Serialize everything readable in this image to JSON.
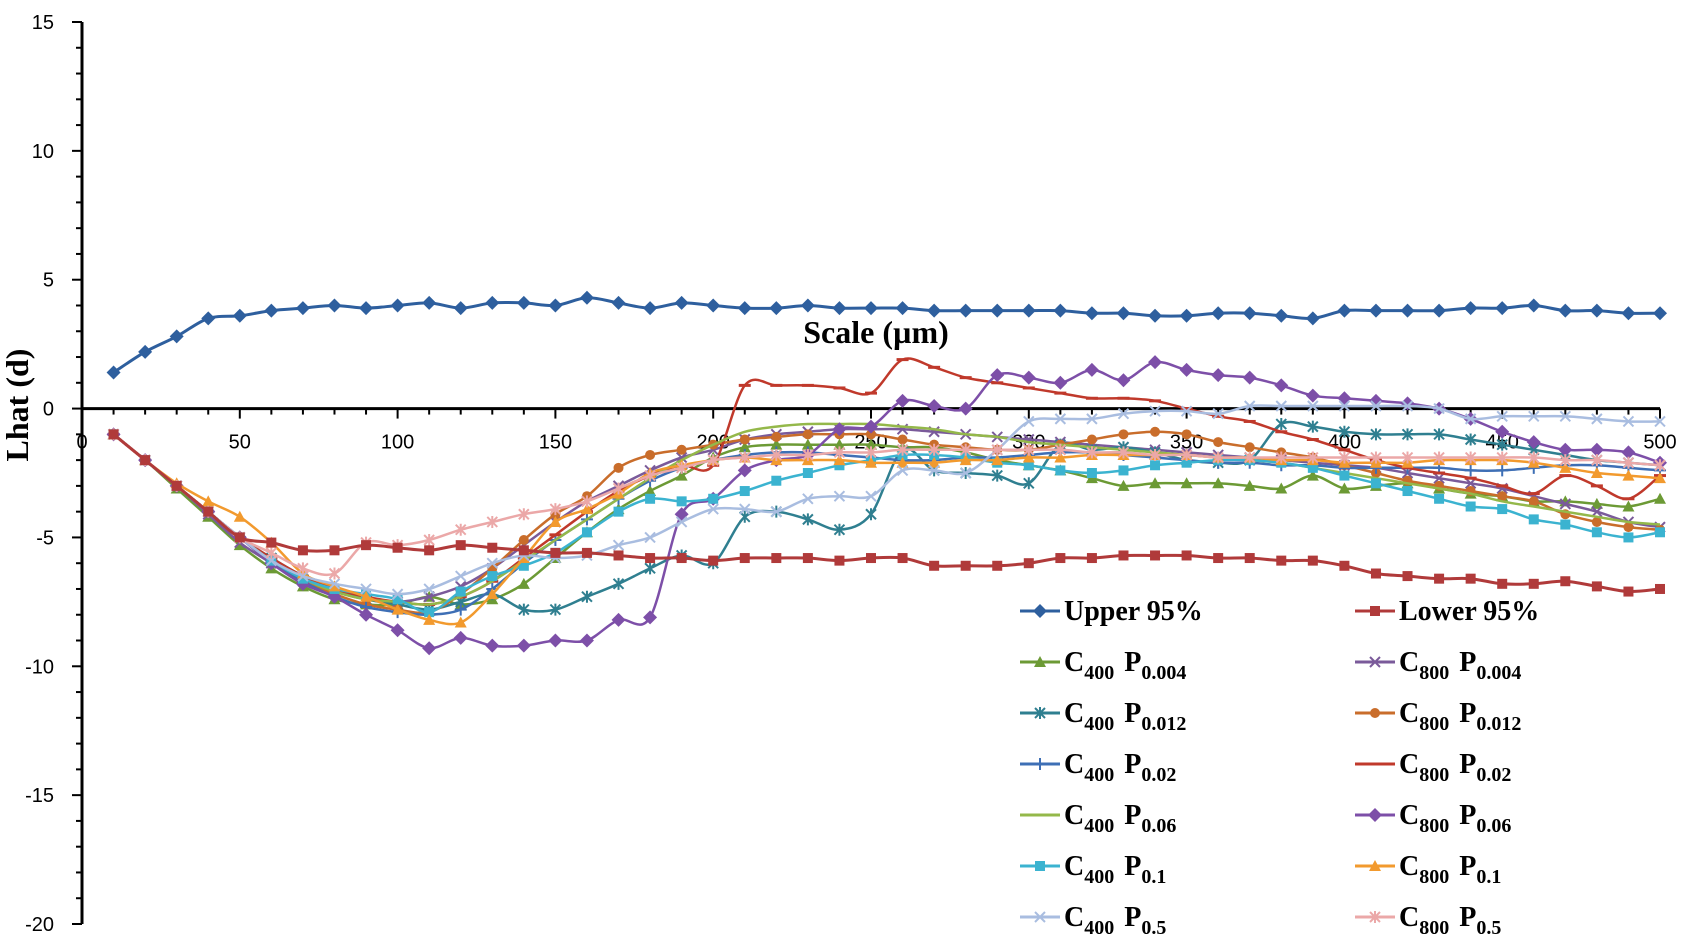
{
  "chart_data": {
    "type": "line",
    "title": "",
    "xlabel": "Scale (µm)",
    "ylabel": "Lhat (d)",
    "xlim": [
      0,
      500
    ],
    "ylim": [
      -20,
      15
    ],
    "x_ticks": [
      "0",
      "50",
      "100",
      "150",
      "200",
      "250",
      "300",
      "350",
      "400",
      "450",
      "500"
    ],
    "y_ticks": [
      "15",
      "10",
      "5",
      "0",
      "-5",
      "-10",
      "-15",
      "-20"
    ],
    "grid": false,
    "legend_position": "bottom-right",
    "x": [
      10,
      20,
      30,
      40,
      50,
      60,
      70,
      80,
      90,
      100,
      110,
      120,
      130,
      140,
      150,
      160,
      170,
      180,
      190,
      200,
      210,
      220,
      230,
      240,
      250,
      260,
      270,
      280,
      290,
      300,
      310,
      320,
      330,
      340,
      350,
      360,
      370,
      380,
      390,
      400,
      410,
      420,
      430,
      440,
      450,
      460,
      470,
      480,
      490,
      500
    ],
    "series": [
      {
        "name": "Upper 95%",
        "legend_base": "Upper 95%",
        "legend_sub": "",
        "color": "#2e5f9e",
        "marker": "diamond",
        "markers": true,
        "values": [
          1.4,
          2.2,
          2.8,
          3.5,
          3.6,
          3.8,
          3.9,
          4.0,
          3.9,
          4.0,
          4.1,
          3.9,
          4.1,
          4.1,
          4.0,
          4.3,
          4.1,
          3.9,
          4.1,
          4.0,
          3.9,
          3.9,
          4.0,
          3.9,
          3.9,
          3.9,
          3.8,
          3.8,
          3.8,
          3.8,
          3.8,
          3.7,
          3.7,
          3.6,
          3.6,
          3.7,
          3.7,
          3.6,
          3.5,
          3.8,
          3.8,
          3.8,
          3.8,
          3.9,
          3.9,
          4.0,
          3.8,
          3.8,
          3.7,
          3.7
        ]
      },
      {
        "name": "Lower 95%",
        "legend_base": "Lower 95%",
        "legend_sub": "",
        "color": "#b03a3a",
        "marker": "square",
        "markers": true,
        "values": [
          -1.0,
          -2.0,
          -3.0,
          -4.0,
          -5.0,
          -5.2,
          -5.5,
          -5.5,
          -5.3,
          -5.4,
          -5.5,
          -5.3,
          -5.4,
          -5.5,
          -5.6,
          -5.6,
          -5.7,
          -5.8,
          -5.8,
          -5.9,
          -5.8,
          -5.8,
          -5.8,
          -5.9,
          -5.8,
          -5.8,
          -6.1,
          -6.1,
          -6.1,
          -6.0,
          -5.8,
          -5.8,
          -5.7,
          -5.7,
          -5.7,
          -5.8,
          -5.8,
          -5.9,
          -5.9,
          -6.1,
          -6.4,
          -6.5,
          -6.6,
          -6.6,
          -6.8,
          -6.8,
          -6.7,
          -6.9,
          -7.1,
          -7.0
        ]
      },
      {
        "name": "C400 P0.004",
        "legend_base": "C",
        "legend_sub": "400",
        "legend_base2": "P",
        "legend_sub2": "0.004",
        "color": "#6c9a35",
        "marker": "triangle",
        "markers": true,
        "values": [
          -1.0,
          -2.0,
          -3.1,
          -4.2,
          -5.3,
          -6.2,
          -6.9,
          -7.4,
          -7.6,
          -7.6,
          -7.3,
          -7.6,
          -7.4,
          -6.8,
          -5.8,
          -4.8,
          -3.9,
          -3.2,
          -2.6,
          -1.9,
          -1.5,
          -1.4,
          -1.4,
          -1.4,
          -1.4,
          -1.5,
          -1.5,
          -1.7,
          -2.0,
          -2.2,
          -2.4,
          -2.7,
          -3.0,
          -2.9,
          -2.9,
          -2.9,
          -3.0,
          -3.1,
          -2.6,
          -3.1,
          -3.0,
          -2.9,
          -3.1,
          -3.3,
          -3.4,
          -3.6,
          -3.6,
          -3.7,
          -3.8,
          -3.5
        ]
      },
      {
        "name": "C800 P0.004",
        "legend_base": "C",
        "legend_sub": "800",
        "legend_base2": "P",
        "legend_sub2": "0.004",
        "color": "#7a5a9a",
        "marker": "x",
        "markers": true,
        "values": [
          -1.0,
          -2.0,
          -3.0,
          -4.1,
          -5.2,
          -6.0,
          -6.7,
          -7.1,
          -7.4,
          -7.5,
          -7.3,
          -6.9,
          -6.2,
          -5.3,
          -4.4,
          -3.6,
          -3.0,
          -2.4,
          -1.9,
          -1.6,
          -1.2,
          -1.0,
          -0.9,
          -0.8,
          -0.8,
          -0.8,
          -0.9,
          -1.0,
          -1.1,
          -1.2,
          -1.3,
          -1.4,
          -1.5,
          -1.6,
          -1.7,
          -1.8,
          -1.9,
          -2.0,
          -2.1,
          -2.2,
          -2.3,
          -2.5,
          -2.7,
          -2.9,
          -3.1,
          -3.4,
          -3.7,
          -4.0,
          -4.4,
          -4.6
        ]
      },
      {
        "name": "C400 P0.012",
        "legend_base": "C",
        "legend_sub": "400",
        "legend_base2": "P",
        "legend_sub2": "0.012",
        "color": "#2f7f90",
        "marker": "star",
        "markers": true,
        "values": [
          -1.0,
          -2.0,
          -3.0,
          -4.0,
          -5.0,
          -5.8,
          -6.5,
          -7.0,
          -7.4,
          -7.6,
          -7.8,
          -7.5,
          -7.2,
          -7.8,
          -7.8,
          -7.3,
          -6.8,
          -6.2,
          -5.7,
          -6.0,
          -4.2,
          -4.0,
          -4.3,
          -4.7,
          -4.1,
          -1.6,
          -2.4,
          -2.5,
          -2.6,
          -2.9,
          -1.4,
          -1.6,
          -1.5,
          -1.7,
          -2.0,
          -2.1,
          -2.0,
          -0.6,
          -0.7,
          -0.9,
          -1.0,
          -1.0,
          -1.0,
          -1.2,
          -1.4,
          -1.6,
          -1.8,
          -2.0,
          -2.1,
          -2.2
        ]
      },
      {
        "name": "C800 P0.012",
        "legend_base": "C",
        "legend_sub": "800",
        "legend_base2": "P",
        "legend_sub2": "0.012",
        "color": "#c96d2b",
        "marker": "circle",
        "markers": true,
        "values": [
          -1.0,
          -2.0,
          -3.0,
          -4.0,
          -5.0,
          -5.9,
          -6.7,
          -7.2,
          -7.6,
          -7.8,
          -7.9,
          -7.2,
          -6.2,
          -5.1,
          -4.1,
          -3.4,
          -2.3,
          -1.8,
          -1.6,
          -1.4,
          -1.2,
          -1.1,
          -1.0,
          -1.0,
          -1.0,
          -1.2,
          -1.4,
          -1.5,
          -1.6,
          -1.6,
          -1.4,
          -1.2,
          -1.0,
          -0.9,
          -1.0,
          -1.3,
          -1.5,
          -1.7,
          -1.9,
          -2.2,
          -2.5,
          -2.8,
          -3.0,
          -3.2,
          -3.4,
          -3.6,
          -4.1,
          -4.4,
          -4.6,
          -4.7
        ]
      },
      {
        "name": "C400 P0.02",
        "legend_base": "C",
        "legend_sub": "400",
        "legend_base2": "P",
        "legend_sub2": "0.02",
        "color": "#3e6fb5",
        "marker": "plus",
        "markers": true,
        "values": [
          -1.0,
          -2.0,
          -3.0,
          -4.0,
          -5.0,
          -5.9,
          -6.7,
          -7.3,
          -7.7,
          -7.9,
          -8.0,
          -7.8,
          -7.0,
          -6.0,
          -5.1,
          -4.3,
          -3.5,
          -2.8,
          -2.3,
          -2.0,
          -1.8,
          -1.7,
          -1.7,
          -1.8,
          -1.9,
          -2.0,
          -2.0,
          -1.9,
          -1.9,
          -1.8,
          -1.7,
          -1.7,
          -1.8,
          -1.9,
          -2.0,
          -2.1,
          -2.1,
          -2.2,
          -2.2,
          -2.3,
          -2.3,
          -2.3,
          -2.3,
          -2.4,
          -2.4,
          -2.3,
          -2.2,
          -2.2,
          -2.3,
          -2.4
        ]
      },
      {
        "name": "C800 P0.02",
        "legend_base": "C",
        "legend_sub": "800",
        "legend_base2": "P",
        "legend_sub2": "0.02",
        "color": "#c0392b",
        "marker": "dash",
        "markers": true,
        "values": [
          -1.0,
          -2.0,
          -3.0,
          -4.0,
          -5.0,
          -5.8,
          -6.5,
          -7.0,
          -7.3,
          -7.5,
          -7.6,
          -7.3,
          -6.7,
          -5.8,
          -4.9,
          -4.0,
          -3.2,
          -2.6,
          -2.2,
          -2.2,
          0.9,
          0.9,
          0.9,
          0.8,
          0.6,
          1.9,
          1.6,
          1.2,
          1.0,
          0.8,
          0.6,
          0.4,
          0.4,
          0.3,
          0.0,
          -0.3,
          -0.5,
          -0.9,
          -1.2,
          -1.6,
          -2.0,
          -2.3,
          -2.5,
          -2.7,
          -3.0,
          -3.3,
          -2.6,
          -3.0,
          -3.5,
          -2.6
        ]
      },
      {
        "name": "C400 P0.06",
        "legend_base": "C",
        "legend_sub": "400",
        "legend_base2": "P",
        "legend_sub2": "0.06",
        "color": "#94b84a",
        "marker": "none",
        "markers": false,
        "values": [
          -1.0,
          -2.0,
          -3.0,
          -4.0,
          -5.0,
          -5.9,
          -6.6,
          -7.1,
          -7.4,
          -7.5,
          -7.6,
          -7.3,
          -6.7,
          -5.9,
          -5.1,
          -4.3,
          -3.5,
          -2.7,
          -2.0,
          -1.4,
          -0.9,
          -0.7,
          -0.6,
          -0.6,
          -0.6,
          -0.7,
          -0.8,
          -1.0,
          -1.1,
          -1.3,
          -1.4,
          -1.5,
          -1.6,
          -1.7,
          -1.8,
          -1.9,
          -2.0,
          -2.1,
          -2.3,
          -2.5,
          -2.7,
          -2.9,
          -3.1,
          -3.3,
          -3.6,
          -3.8,
          -4.0,
          -4.2,
          -4.4,
          -4.5
        ]
      },
      {
        "name": "C800 P0.06",
        "legend_base": "C",
        "legend_sub": "800",
        "legend_base2": "P",
        "legend_sub2": "0.06",
        "color": "#7d4fa8",
        "marker": "diamond",
        "markers": true,
        "values": [
          -1.0,
          -2.0,
          -3.0,
          -4.0,
          -5.0,
          -6.0,
          -6.8,
          -7.3,
          -8.0,
          -8.6,
          -9.3,
          -8.9,
          -9.2,
          -9.2,
          -9.0,
          -9.0,
          -8.2,
          -8.1,
          -4.1,
          -3.5,
          -2.4,
          -2.0,
          -1.8,
          -0.8,
          -0.7,
          0.3,
          0.1,
          0.0,
          1.3,
          1.2,
          1.0,
          1.5,
          1.1,
          1.8,
          1.5,
          1.3,
          1.2,
          0.9,
          0.5,
          0.4,
          0.3,
          0.2,
          0.0,
          -0.4,
          -0.9,
          -1.3,
          -1.6,
          -1.6,
          -1.7,
          -2.1
        ]
      },
      {
        "name": "C400 P0.1",
        "legend_base": "C",
        "legend_sub": "400",
        "legend_base2": "P",
        "legend_sub2": "0.1",
        "color": "#3bb3d0",
        "marker": "square",
        "markers": true,
        "values": [
          -1.0,
          -2.0,
          -3.0,
          -4.0,
          -5.0,
          -5.9,
          -6.6,
          -7.0,
          -7.2,
          -7.4,
          -7.9,
          -7.1,
          -6.5,
          -6.1,
          -5.6,
          -4.8,
          -4.0,
          -3.5,
          -3.6,
          -3.5,
          -3.2,
          -2.8,
          -2.5,
          -2.2,
          -2.0,
          -1.8,
          -1.8,
          -1.9,
          -2.1,
          -2.2,
          -2.4,
          -2.5,
          -2.4,
          -2.2,
          -2.1,
          -2.0,
          -2.0,
          -2.1,
          -2.3,
          -2.6,
          -2.9,
          -3.2,
          -3.5,
          -3.8,
          -3.9,
          -4.3,
          -4.5,
          -4.8,
          -5.0,
          -4.8
        ]
      },
      {
        "name": "C800 P0.1",
        "legend_base": "C",
        "legend_sub": "800",
        "legend_base2": "P",
        "legend_sub2": "0.1",
        "color": "#f29a2e",
        "marker": "triangle",
        "markers": true,
        "values": [
          -1.0,
          -2.0,
          -2.9,
          -3.6,
          -4.2,
          -5.2,
          -6.4,
          -6.9,
          -7.3,
          -7.8,
          -8.2,
          -8.3,
          -7.2,
          -5.8,
          -4.4,
          -3.9,
          -3.3,
          -2.5,
          -2.2,
          -2.0,
          -1.9,
          -2.0,
          -2.0,
          -2.0,
          -2.1,
          -2.1,
          -2.1,
          -2.0,
          -2.0,
          -1.9,
          -1.9,
          -1.8,
          -1.8,
          -1.8,
          -1.8,
          -1.9,
          -1.9,
          -2.0,
          -2.0,
          -2.1,
          -2.1,
          -2.1,
          -2.0,
          -2.0,
          -2.0,
          -2.1,
          -2.3,
          -2.5,
          -2.6,
          -2.7
        ]
      },
      {
        "name": "C400 P0.5",
        "legend_base": "C",
        "legend_sub": "400",
        "legend_base2": "P",
        "legend_sub2": "0.5",
        "color": "#a9bde0",
        "marker": "x",
        "markers": true,
        "values": [
          -1.0,
          -2.0,
          -3.0,
          -4.0,
          -5.0,
          -5.9,
          -6.5,
          -6.8,
          -7.0,
          -7.2,
          -7.0,
          -6.5,
          -6.0,
          -5.7,
          -5.8,
          -5.7,
          -5.3,
          -5.0,
          -4.4,
          -3.9,
          -3.9,
          -4.0,
          -3.5,
          -3.4,
          -3.4,
          -2.4,
          -2.4,
          -2.5,
          -1.6,
          -0.5,
          -0.4,
          -0.4,
          -0.2,
          -0.1,
          -0.1,
          -0.2,
          0.1,
          0.1,
          0.1,
          0.1,
          0.1,
          0.1,
          0.0,
          -0.4,
          -0.3,
          -0.3,
          -0.3,
          -0.4,
          -0.5,
          -0.5
        ]
      },
      {
        "name": "C800 P0.5",
        "legend_base": "C",
        "legend_sub": "800",
        "legend_base2": "P",
        "legend_sub2": "0.5",
        "color": "#eba8a8",
        "marker": "star",
        "markers": true,
        "values": [
          -1.0,
          -2.0,
          -3.0,
          -4.0,
          -5.0,
          -5.6,
          -6.2,
          -6.4,
          -5.2,
          -5.3,
          -5.1,
          -4.7,
          -4.4,
          -4.1,
          -3.9,
          -3.6,
          -3.1,
          -2.6,
          -2.3,
          -2.0,
          -1.9,
          -1.8,
          -1.8,
          -1.7,
          -1.7,
          -1.6,
          -1.6,
          -1.6,
          -1.6,
          -1.6,
          -1.6,
          -1.7,
          -1.7,
          -1.8,
          -1.8,
          -1.9,
          -1.9,
          -1.9,
          -1.9,
          -1.9,
          -1.9,
          -1.9,
          -1.9,
          -1.9,
          -1.9,
          -1.9,
          -2.0,
          -2.0,
          -2.1,
          -2.2
        ]
      }
    ]
  }
}
